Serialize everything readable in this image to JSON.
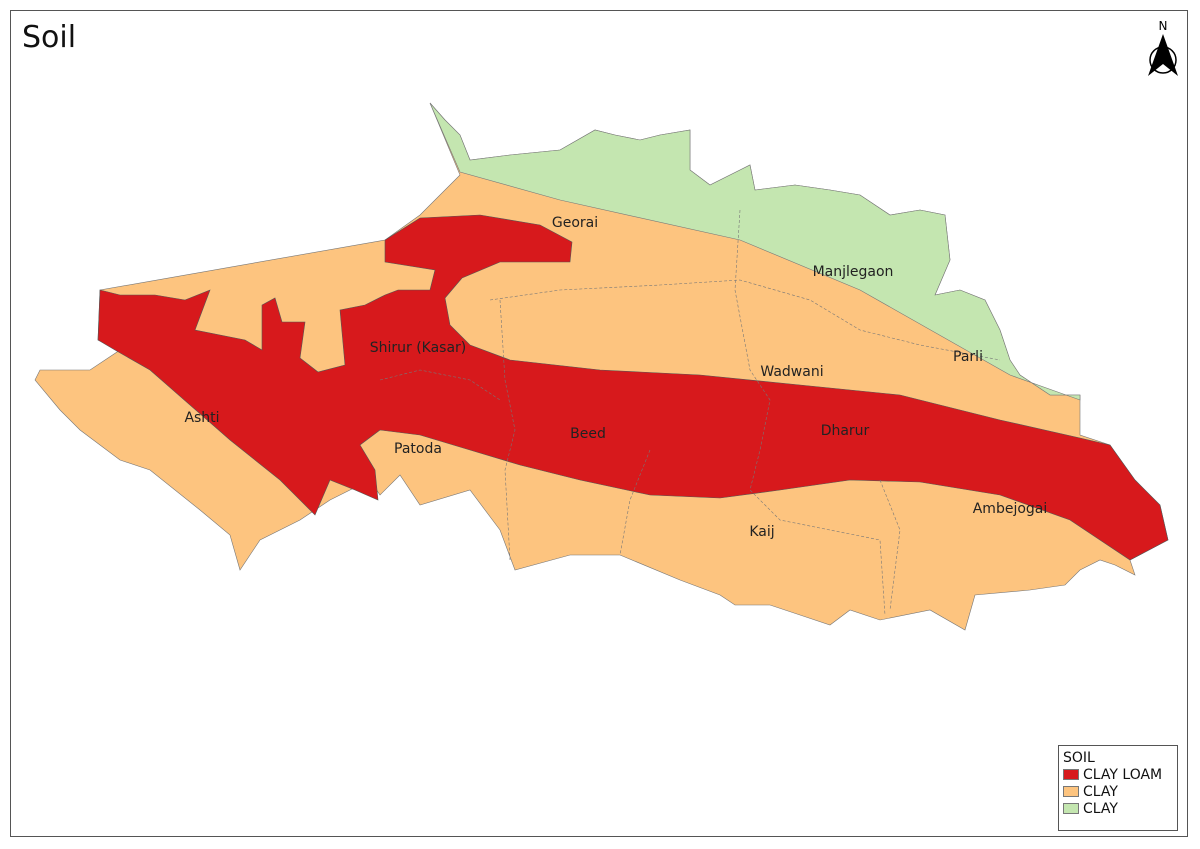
{
  "title": "Soil",
  "north_arrow": {
    "label": "N",
    "icon": "north-arrow-icon"
  },
  "legend": {
    "title": "SOIL",
    "items": [
      {
        "label": "CLAY LOAM",
        "color": "#d7191c"
      },
      {
        "label": "CLAY",
        "color": "#fdc47f"
      },
      {
        "label": "CLAY",
        "color": "#c4e6b0"
      }
    ]
  },
  "places": [
    "Georai",
    "Manjlegaon",
    "Shirur (Kasar)",
    "Parli",
    "Wadwani",
    "Ashti",
    "Beed",
    "Dharur",
    "Patoda",
    "Ambejogai",
    "Kaij"
  ]
}
